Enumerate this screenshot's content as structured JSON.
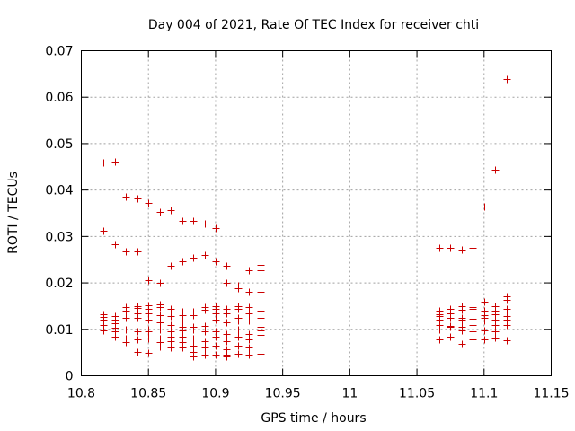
{
  "chart_data": {
    "type": "scatter",
    "title": "Day 004 of 2021, Rate Of TEC Index for receiver chti",
    "xlabel": "GPS time / hours",
    "ylabel": "ROTI / TECUs",
    "xlim": [
      10.8,
      11.15
    ],
    "ylim": [
      0,
      0.07
    ],
    "xticks": [
      "10.8",
      "10.85",
      "10.9",
      "10.95",
      "11",
      "11.05",
      "11.1",
      "11.15"
    ],
    "yticks": [
      "0",
      "0.01",
      "0.02",
      "0.03",
      "0.04",
      "0.05",
      "0.06",
      "0.07"
    ],
    "grid": true,
    "marker": "plus",
    "color": "#cc0000",
    "series": [
      {
        "name": "ROTI",
        "points": [
          [
            10.8167,
            0.046
          ],
          [
            10.8167,
            0.0313
          ],
          [
            10.8167,
            0.0132
          ],
          [
            10.8167,
            0.0127
          ],
          [
            10.8167,
            0.012
          ],
          [
            10.8167,
            0.011
          ],
          [
            10.8167,
            0.01
          ],
          [
            10.8167,
            0.0097
          ],
          [
            10.825,
            0.0462
          ],
          [
            10.825,
            0.0284
          ],
          [
            10.825,
            0.0128
          ],
          [
            10.825,
            0.012
          ],
          [
            10.825,
            0.0113
          ],
          [
            10.825,
            0.0103
          ],
          [
            10.825,
            0.0095
          ],
          [
            10.825,
            0.0085
          ],
          [
            10.8333,
            0.0385
          ],
          [
            10.8333,
            0.0268
          ],
          [
            10.8333,
            0.0148
          ],
          [
            10.8333,
            0.014
          ],
          [
            10.8333,
            0.0125
          ],
          [
            10.8333,
            0.01
          ],
          [
            10.8333,
            0.008
          ],
          [
            10.8333,
            0.0073
          ],
          [
            10.8417,
            0.0381
          ],
          [
            10.8417,
            0.0267
          ],
          [
            10.8417,
            0.015
          ],
          [
            10.8417,
            0.0146
          ],
          [
            10.8417,
            0.0135
          ],
          [
            10.8417,
            0.0125
          ],
          [
            10.8417,
            0.0095
          ],
          [
            10.8417,
            0.0078
          ],
          [
            10.8417,
            0.0052
          ],
          [
            10.85,
            0.0373
          ],
          [
            10.85,
            0.0205
          ],
          [
            10.85,
            0.0152
          ],
          [
            10.85,
            0.0145
          ],
          [
            10.85,
            0.0135
          ],
          [
            10.85,
            0.012
          ],
          [
            10.85,
            0.01
          ],
          [
            10.85,
            0.0095
          ],
          [
            10.85,
            0.008
          ],
          [
            10.85,
            0.005
          ],
          [
            10.8583,
            0.0353
          ],
          [
            10.8583,
            0.0201
          ],
          [
            10.8583,
            0.0153
          ],
          [
            10.8583,
            0.0148
          ],
          [
            10.8583,
            0.013
          ],
          [
            10.8583,
            0.0115
          ],
          [
            10.8583,
            0.01
          ],
          [
            10.8583,
            0.008
          ],
          [
            10.8583,
            0.0072
          ],
          [
            10.8583,
            0.0062
          ],
          [
            10.8667,
            0.0356
          ],
          [
            10.8667,
            0.0236
          ],
          [
            10.8667,
            0.0145
          ],
          [
            10.8667,
            0.0128
          ],
          [
            10.8667,
            0.011
          ],
          [
            10.8667,
            0.0095
          ],
          [
            10.8667,
            0.0085
          ],
          [
            10.8667,
            0.0075
          ],
          [
            10.8667,
            0.006
          ],
          [
            10.875,
            0.0333
          ],
          [
            10.875,
            0.0247
          ],
          [
            10.875,
            0.0138
          ],
          [
            10.875,
            0.013
          ],
          [
            10.875,
            0.0118
          ],
          [
            10.875,
            0.0105
          ],
          [
            10.875,
            0.0098
          ],
          [
            10.875,
            0.0085
          ],
          [
            10.875,
            0.0073
          ],
          [
            10.875,
            0.006
          ],
          [
            10.8833,
            0.0334
          ],
          [
            10.8833,
            0.0255
          ],
          [
            10.8833,
            0.0138
          ],
          [
            10.8833,
            0.013
          ],
          [
            10.8833,
            0.0105
          ],
          [
            10.8833,
            0.01
          ],
          [
            10.8833,
            0.008
          ],
          [
            10.8833,
            0.0065
          ],
          [
            10.8833,
            0.0052
          ],
          [
            10.8833,
            0.0042
          ],
          [
            10.8917,
            0.0328
          ],
          [
            10.8917,
            0.026
          ],
          [
            10.8917,
            0.0148
          ],
          [
            10.8917,
            0.0143
          ],
          [
            10.8917,
            0.0108
          ],
          [
            10.8917,
            0.0095
          ],
          [
            10.8917,
            0.0075
          ],
          [
            10.8917,
            0.006
          ],
          [
            10.8917,
            0.0045
          ],
          [
            10.9,
            0.0318
          ],
          [
            10.9,
            0.0247
          ],
          [
            10.9,
            0.015
          ],
          [
            10.9,
            0.0145
          ],
          [
            10.9,
            0.0135
          ],
          [
            10.9,
            0.012
          ],
          [
            10.9,
            0.0095
          ],
          [
            10.9,
            0.0085
          ],
          [
            10.9,
            0.0065
          ],
          [
            10.9,
            0.0045
          ],
          [
            10.9083,
            0.0237
          ],
          [
            10.9083,
            0.02
          ],
          [
            10.9083,
            0.0145
          ],
          [
            10.9083,
            0.0135
          ],
          [
            10.9083,
            0.0115
          ],
          [
            10.9083,
            0.009
          ],
          [
            10.9083,
            0.0075
          ],
          [
            10.9083,
            0.0058
          ],
          [
            10.9083,
            0.0045
          ],
          [
            10.9083,
            0.0042
          ],
          [
            10.9167,
            0.0195
          ],
          [
            10.9167,
            0.0188
          ],
          [
            10.9167,
            0.015
          ],
          [
            10.9167,
            0.0145
          ],
          [
            10.9167,
            0.0125
          ],
          [
            10.9167,
            0.0118
          ],
          [
            10.9167,
            0.01
          ],
          [
            10.9167,
            0.0085
          ],
          [
            10.9167,
            0.0065
          ],
          [
            10.9167,
            0.0048
          ],
          [
            10.925,
            0.0228
          ],
          [
            10.925,
            0.018
          ],
          [
            10.925,
            0.0148
          ],
          [
            10.925,
            0.0135
          ],
          [
            10.925,
            0.0118
          ],
          [
            10.925,
            0.009
          ],
          [
            10.925,
            0.0078
          ],
          [
            10.925,
            0.006
          ],
          [
            10.925,
            0.0045
          ],
          [
            10.9333,
            0.0238
          ],
          [
            10.9333,
            0.0228
          ],
          [
            10.9333,
            0.018
          ],
          [
            10.9333,
            0.014
          ],
          [
            10.9333,
            0.0125
          ],
          [
            10.9333,
            0.0105
          ],
          [
            10.9333,
            0.0098
          ],
          [
            10.9333,
            0.0088
          ],
          [
            10.9333,
            0.0048
          ],
          [
            11.0667,
            0.0275
          ],
          [
            11.0667,
            0.014
          ],
          [
            11.0667,
            0.0133
          ],
          [
            11.0667,
            0.0128
          ],
          [
            11.0667,
            0.012
          ],
          [
            11.0667,
            0.011
          ],
          [
            11.0667,
            0.01
          ],
          [
            11.0667,
            0.0078
          ],
          [
            11.075,
            0.0275
          ],
          [
            11.075,
            0.0145
          ],
          [
            11.075,
            0.0135
          ],
          [
            11.075,
            0.0125
          ],
          [
            11.075,
            0.0108
          ],
          [
            11.075,
            0.0105
          ],
          [
            11.075,
            0.0085
          ],
          [
            11.0833,
            0.0272
          ],
          [
            11.0833,
            0.015
          ],
          [
            11.0833,
            0.0143
          ],
          [
            11.0833,
            0.0125
          ],
          [
            11.0833,
            0.012
          ],
          [
            11.0833,
            0.0105
          ],
          [
            11.0833,
            0.0098
          ],
          [
            11.0833,
            0.0068
          ],
          [
            11.0917,
            0.0275
          ],
          [
            11.0917,
            0.0148
          ],
          [
            11.0917,
            0.0145
          ],
          [
            11.0917,
            0.0123
          ],
          [
            11.0917,
            0.0118
          ],
          [
            11.0917,
            0.011
          ],
          [
            11.0917,
            0.0095
          ],
          [
            11.0917,
            0.0078
          ],
          [
            11.1,
            0.0365
          ],
          [
            11.1,
            0.016
          ],
          [
            11.1,
            0.014
          ],
          [
            11.1,
            0.013
          ],
          [
            11.1,
            0.0125
          ],
          [
            11.1,
            0.0118
          ],
          [
            11.1,
            0.0098
          ],
          [
            11.1,
            0.0078
          ],
          [
            11.1083,
            0.0443
          ],
          [
            11.1083,
            0.015
          ],
          [
            11.1083,
            0.014
          ],
          [
            11.1083,
            0.0133
          ],
          [
            11.1083,
            0.012
          ],
          [
            11.1083,
            0.011
          ],
          [
            11.1083,
            0.0095
          ],
          [
            11.1083,
            0.0082
          ],
          [
            11.1167,
            0.064
          ],
          [
            11.1167,
            0.0172
          ],
          [
            11.1167,
            0.0163
          ],
          [
            11.1167,
            0.0145
          ],
          [
            11.1167,
            0.0128
          ],
          [
            11.1167,
            0.012
          ],
          [
            11.1167,
            0.011
          ],
          [
            11.1167,
            0.0076
          ]
        ]
      }
    ]
  }
}
